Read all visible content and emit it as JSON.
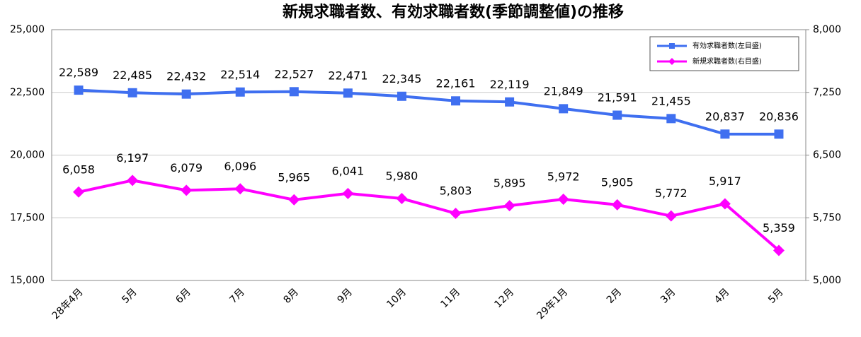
{
  "chart_data": {
    "type": "line",
    "title": "新規求職者数、有効求職者数(季節調整値)の推移",
    "categories": [
      "28年4月",
      "5月",
      "6月",
      "7月",
      "8月",
      "9月",
      "10月",
      "11月",
      "12月",
      "29年1月",
      "2月",
      "3月",
      "4月",
      "5月"
    ],
    "series": [
      {
        "name": "有効求職者数(左目盛)",
        "color": "#3f6ff0",
        "marker": "square",
        "values": [
          22589,
          22485,
          22432,
          22514,
          22527,
          22471,
          22345,
          22161,
          22119,
          21849,
          21591,
          21455,
          20837,
          20836
        ],
        "value_labels": [
          "22,589",
          "22,485",
          "22,432",
          "22,514",
          "22,527",
          "22,471",
          "22,345",
          "22,161",
          "22,119",
          "21,849",
          "21,591",
          "21,455",
          "20,837",
          "20,836"
        ]
      },
      {
        "name": "新規求職者数(右目盛)",
        "color": "#ff00ff",
        "marker": "diamond",
        "axis": "y2",
        "values": [
          6058,
          6197,
          6079,
          6096,
          5965,
          6041,
          5980,
          5803,
          5895,
          5972,
          5905,
          5772,
          5917,
          5359
        ],
        "value_labels": [
          "6,058",
          "6,197",
          "6,079",
          "6,096",
          "5,965",
          "6,041",
          "5,980",
          "5,803",
          "5,895",
          "5,972",
          "5,905",
          "5,772",
          "5,917",
          "5,359"
        ]
      }
    ],
    "ylim": [
      15000,
      25000
    ],
    "yticks": [
      {
        "value": 15000,
        "label": "15,000"
      },
      {
        "value": 17500,
        "label": "17,500"
      },
      {
        "value": 20000,
        "label": "20,000"
      },
      {
        "value": 22500,
        "label": "22,500"
      },
      {
        "value": 25000,
        "label": "25,000"
      }
    ],
    "y2lim": [
      5000,
      8000
    ],
    "y2ticks": [
      {
        "value": 5000,
        "label": "5,000"
      },
      {
        "value": 5750,
        "label": "5,750"
      },
      {
        "value": 6500,
        "label": "6,500"
      },
      {
        "value": 7250,
        "label": "7,250"
      },
      {
        "value": 8000,
        "label": "8,000"
      }
    ],
    "grid": true,
    "legend": "upper right"
  }
}
